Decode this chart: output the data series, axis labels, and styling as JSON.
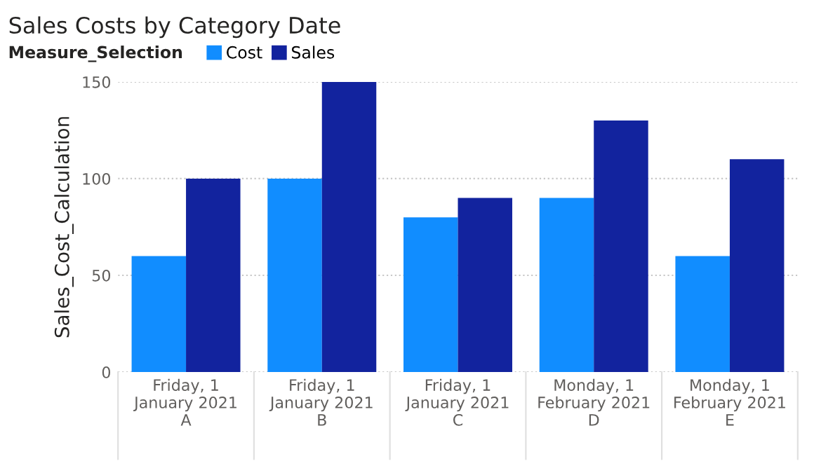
{
  "chart_data": {
    "type": "bar",
    "title": "Sales Costs by Category Date",
    "ylabel": "Sales_Cost_Calculation",
    "legend_title": "Measure_Selection",
    "legend": "top left",
    "categories": [
      "Friday, 1\nJanuary 2021\nA",
      "Friday, 1\nJanuary 2021\nB",
      "Friday, 1\nJanuary 2021\nC",
      "Monday, 1\nFebruary 2021\nD",
      "Monday, 1\nFebruary 2021\nE"
    ],
    "series": [
      {
        "name": "Cost",
        "color": "#118dff",
        "values": [
          60,
          100,
          80,
          90,
          60
        ]
      },
      {
        "name": "Sales",
        "color": "#12239e",
        "values": [
          100,
          150,
          90,
          130,
          110
        ]
      }
    ],
    "ylim": [
      0,
      150
    ],
    "yticks": [
      0,
      50,
      100,
      150
    ],
    "grid": "y"
  }
}
